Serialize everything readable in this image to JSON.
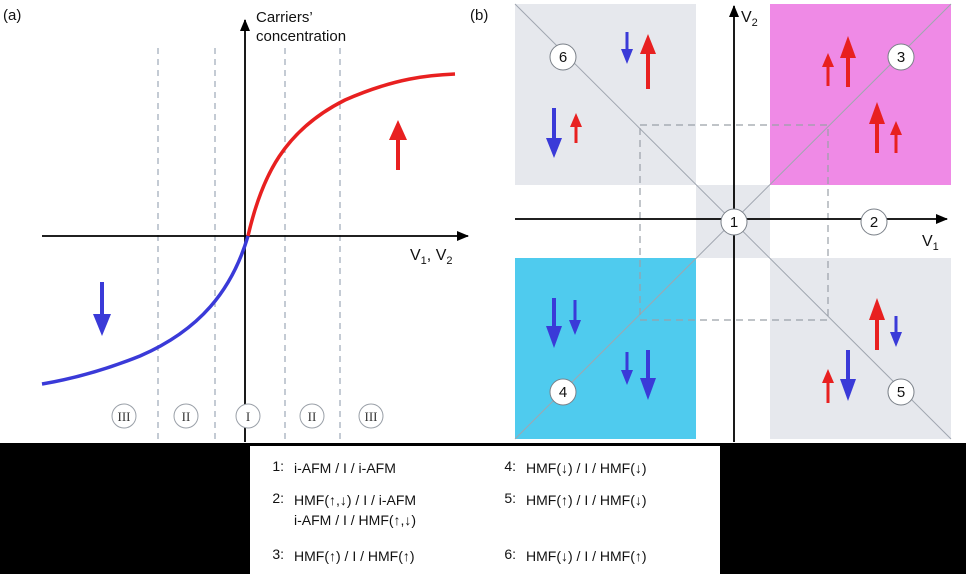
{
  "panel_a": {
    "label": "(a)",
    "y_axis_label_line1": "Carriers’",
    "y_axis_label_line2": "concentration",
    "x_axis_label_main": "V",
    "x_axis_label_sub1": "1",
    "x_axis_label_sep": ", V",
    "x_axis_label_sub2": "2",
    "regions": [
      "III",
      "II",
      "I",
      "II",
      "III"
    ],
    "colors": {
      "positive_curve": "#e82020",
      "negative_curve": "#3a3ad8",
      "spin_up": "#e82020",
      "spin_down": "#3a3ad8"
    }
  },
  "panel_b": {
    "label": "(b)",
    "y_axis_label_main": "V",
    "y_axis_label_sub": "2",
    "x_axis_label_main": "V",
    "x_axis_label_sub": "1",
    "zones": [
      "1",
      "2",
      "3",
      "4",
      "5",
      "6"
    ],
    "colors": {
      "zone_3": "#ef8ae6",
      "zone_4": "#4fcbee",
      "neutral": "#e6e8ed"
    }
  },
  "legend": {
    "items": [
      {
        "key": "1:",
        "lines": [
          "i-AFM / I / i-AFM"
        ]
      },
      {
        "key": "2:",
        "lines": [
          "HMF(↑,↓) / I / i-AFM",
          "i-AFM / I / HMF(↑,↓)"
        ]
      },
      {
        "key": "3:",
        "lines": [
          "HMF(↑) / I / HMF(↑)"
        ]
      },
      {
        "key": "4:",
        "lines": [
          "HMF(↓) / I / HMF(↓)"
        ]
      },
      {
        "key": "5:",
        "lines": [
          "HMF(↑) / I / HMF(↓)"
        ]
      },
      {
        "key": "6:",
        "lines": [
          "HMF(↓) / I / HMF(↑)"
        ]
      }
    ]
  }
}
